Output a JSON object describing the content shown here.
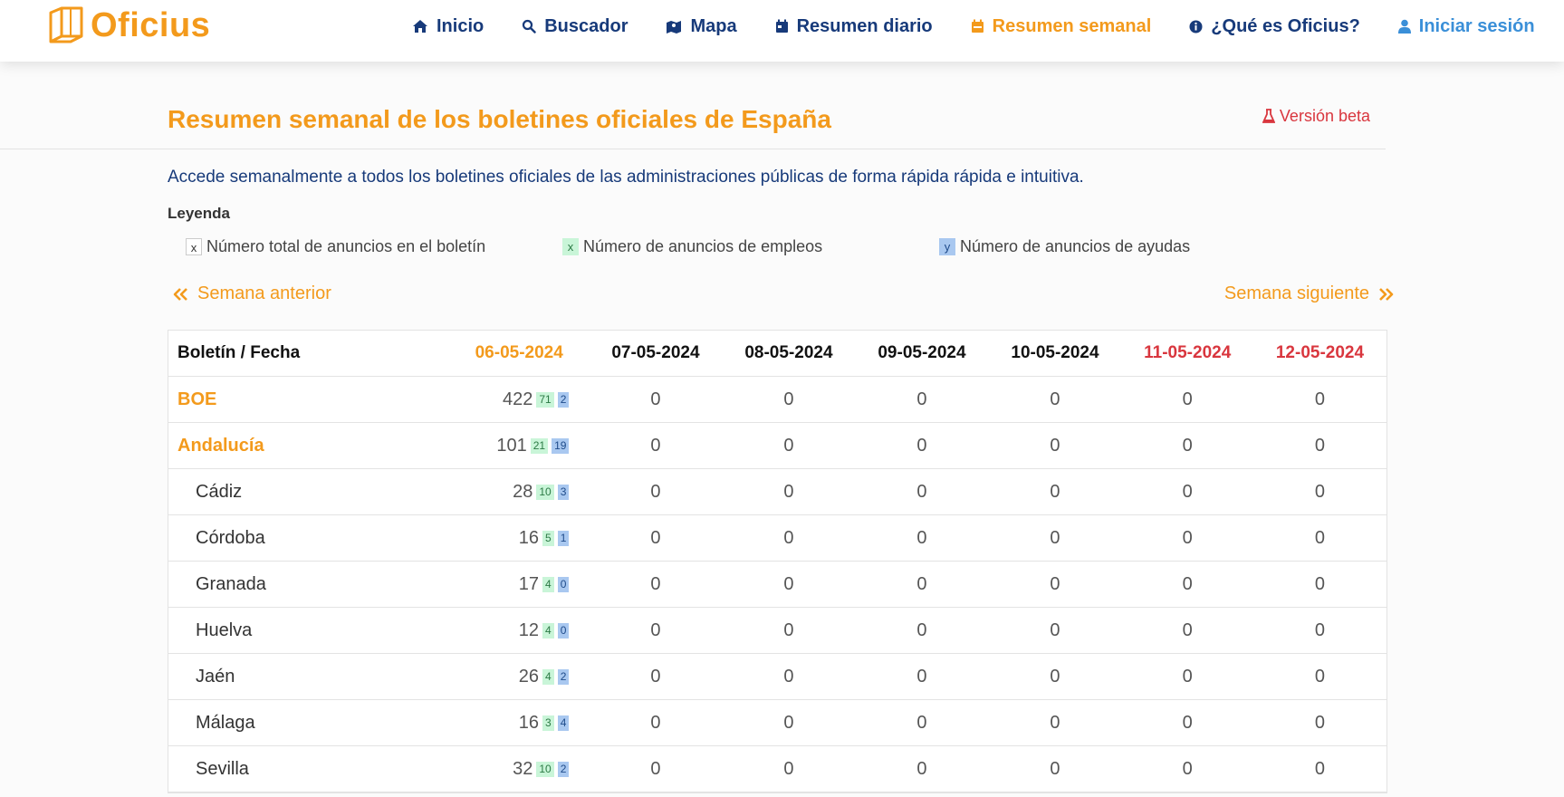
{
  "brand": {
    "name": "Oficius"
  },
  "nav": {
    "items": [
      {
        "label": "Inicio",
        "icon": "home-icon"
      },
      {
        "label": "Buscador",
        "icon": "search-icon"
      },
      {
        "label": "Mapa",
        "icon": "map-icon"
      },
      {
        "label": "Resumen diario",
        "icon": "calendar-day-icon"
      },
      {
        "label": "Resumen semanal",
        "icon": "calendar-week-icon",
        "active": true
      },
      {
        "label": "¿Qué es Oficius?",
        "icon": "info-icon"
      },
      {
        "label": "Iniciar sesión",
        "icon": "user-icon"
      }
    ]
  },
  "page": {
    "title": "Resumen semanal de los boletines oficiales de España",
    "beta": "Versión beta",
    "intro": "Accede semanalmente a todos los boletines oficiales de las administraciones públicas de forma rápida rápida e intuitiva."
  },
  "legend": {
    "title": "Leyenda",
    "items": [
      {
        "swatch": "x",
        "label": "Número total de anuncios en el boletín"
      },
      {
        "swatch": "x",
        "label": "Número de anuncios de empleos"
      },
      {
        "swatch": "y",
        "label": "Número de anuncios de ayudas"
      }
    ]
  },
  "week_nav": {
    "prev": "Semana anterior",
    "next": "Semana siguiente"
  },
  "colors": {
    "accent": "#f39a1c",
    "navy": "#173a7a",
    "red": "#d9363e",
    "empleo": "#c9f5d8",
    "ayuda": "#a9c8f0"
  },
  "table": {
    "header_first": "Boletín / Fecha",
    "dates": [
      "06-05-2024",
      "07-05-2024",
      "08-05-2024",
      "09-05-2024",
      "10-05-2024",
      "11-05-2024",
      "12-05-2024"
    ],
    "rows": [
      {
        "name": "BOE",
        "total": "422",
        "empleos": "71",
        "ayudas": "2",
        "rest": [
          "0",
          "0",
          "0",
          "0",
          "0",
          "0"
        ]
      },
      {
        "name": "Andalucía",
        "total": "101",
        "empleos": "21",
        "ayudas": "19",
        "rest": [
          "0",
          "0",
          "0",
          "0",
          "0",
          "0"
        ]
      },
      {
        "name": "Cádiz",
        "total": "28",
        "empleos": "10",
        "ayudas": "3",
        "rest": [
          "0",
          "0",
          "0",
          "0",
          "0",
          "0"
        ]
      },
      {
        "name": "Córdoba",
        "total": "16",
        "empleos": "5",
        "ayudas": "1",
        "rest": [
          "0",
          "0",
          "0",
          "0",
          "0",
          "0"
        ]
      },
      {
        "name": "Granada",
        "total": "17",
        "empleos": "4",
        "ayudas": "0",
        "rest": [
          "0",
          "0",
          "0",
          "0",
          "0",
          "0"
        ]
      },
      {
        "name": "Huelva",
        "total": "12",
        "empleos": "4",
        "ayudas": "0",
        "rest": [
          "0",
          "0",
          "0",
          "0",
          "0",
          "0"
        ]
      },
      {
        "name": "Jaén",
        "total": "26",
        "empleos": "4",
        "ayudas": "2",
        "rest": [
          "0",
          "0",
          "0",
          "0",
          "0",
          "0"
        ]
      },
      {
        "name": "Málaga",
        "total": "16",
        "empleos": "3",
        "ayudas": "4",
        "rest": [
          "0",
          "0",
          "0",
          "0",
          "0",
          "0"
        ]
      },
      {
        "name": "Sevilla",
        "total": "32",
        "empleos": "10",
        "ayudas": "2",
        "rest": [
          "0",
          "0",
          "0",
          "0",
          "0",
          "0"
        ]
      }
    ]
  }
}
